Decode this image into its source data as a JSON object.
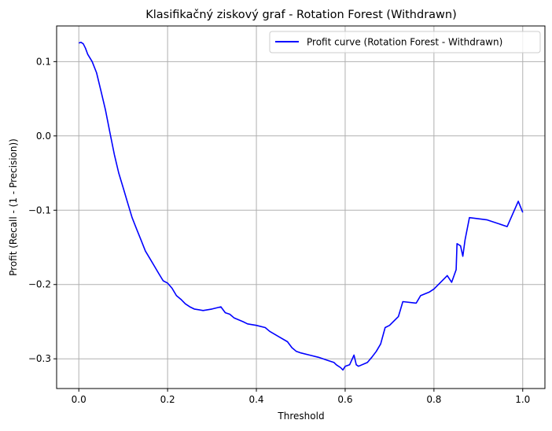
{
  "chart_data": {
    "type": "line",
    "title": "Klasifikačný ziskový graf - Rotation Forest (Withdrawn)",
    "xlabel": "Threshold",
    "ylabel": "Profit (Recall - (1 - Precision))",
    "xlim": [
      -0.05,
      1.05
    ],
    "ylim": [
      -0.34,
      0.148
    ],
    "grid": true,
    "legend_position": "top-right",
    "x_ticks": [
      0.0,
      0.2,
      0.4,
      0.6,
      0.8,
      1.0
    ],
    "x_tick_labels": [
      "0.0",
      "0.2",
      "0.4",
      "0.6",
      "0.8",
      "1.0"
    ],
    "y_ticks": [
      0.1,
      0.0,
      -0.1,
      -0.2,
      -0.3
    ],
    "y_tick_labels": [
      "0.1",
      "0.0",
      "−0.1",
      "−0.2",
      "−0.3"
    ],
    "series": [
      {
        "name": "Profit curve (Rotation Forest - Withdrawn)",
        "color": "#0000ff",
        "x": [
          0.0,
          0.005,
          0.01,
          0.015,
          0.02,
          0.03,
          0.04,
          0.05,
          0.06,
          0.065,
          0.07,
          0.08,
          0.09,
          0.1,
          0.11,
          0.12,
          0.13,
          0.14,
          0.15,
          0.16,
          0.17,
          0.18,
          0.19,
          0.2,
          0.21,
          0.22,
          0.23,
          0.24,
          0.25,
          0.26,
          0.28,
          0.3,
          0.32,
          0.33,
          0.34,
          0.35,
          0.37,
          0.38,
          0.4,
          0.42,
          0.43,
          0.45,
          0.47,
          0.48,
          0.49,
          0.5,
          0.52,
          0.54,
          0.56,
          0.575,
          0.58,
          0.59,
          0.595,
          0.6,
          0.61,
          0.62,
          0.625,
          0.63,
          0.65,
          0.66,
          0.67,
          0.68,
          0.69,
          0.7,
          0.72,
          0.73,
          0.76,
          0.77,
          0.79,
          0.8,
          0.83,
          0.84,
          0.85,
          0.852,
          0.86,
          0.865,
          0.87,
          0.88,
          0.92,
          0.965,
          0.99,
          1.0
        ],
        "values": [
          0.125,
          0.126,
          0.124,
          0.118,
          0.11,
          0.1,
          0.085,
          0.06,
          0.035,
          0.02,
          0.005,
          -0.025,
          -0.05,
          -0.07,
          -0.09,
          -0.11,
          -0.125,
          -0.14,
          -0.155,
          -0.165,
          -0.175,
          -0.185,
          -0.195,
          -0.198,
          -0.205,
          -0.215,
          -0.22,
          -0.226,
          -0.23,
          -0.233,
          -0.235,
          -0.233,
          -0.23,
          -0.238,
          -0.24,
          -0.245,
          -0.25,
          -0.253,
          -0.255,
          -0.258,
          -0.263,
          -0.27,
          -0.277,
          -0.285,
          -0.29,
          -0.292,
          -0.295,
          -0.298,
          -0.302,
          -0.305,
          -0.308,
          -0.312,
          -0.315,
          -0.31,
          -0.308,
          -0.295,
          -0.308,
          -0.31,
          -0.305,
          -0.298,
          -0.29,
          -0.28,
          -0.258,
          -0.255,
          -0.243,
          -0.223,
          -0.225,
          -0.215,
          -0.21,
          -0.206,
          -0.188,
          -0.197,
          -0.18,
          -0.145,
          -0.148,
          -0.162,
          -0.14,
          -0.11,
          -0.113,
          -0.122,
          -0.088,
          -0.103
        ]
      }
    ]
  }
}
